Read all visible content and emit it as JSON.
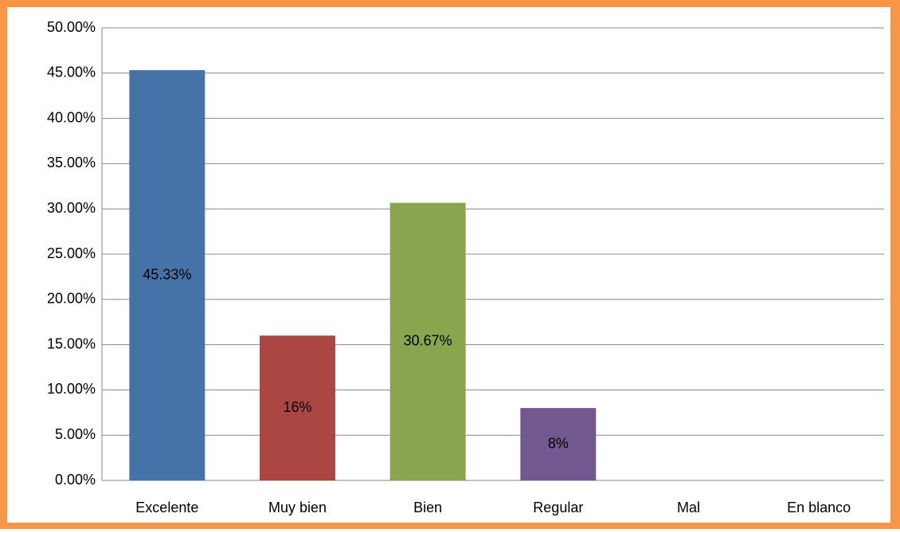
{
  "chart_data": {
    "type": "bar",
    "categories": [
      "Excelente",
      "Muy bien",
      "Bien",
      "Regular",
      "Mal",
      "En blanco"
    ],
    "values": [
      45.33,
      16,
      30.67,
      8,
      0,
      0
    ],
    "value_labels": [
      "45.33%",
      "16%",
      "30.67%",
      "8%",
      null,
      null
    ],
    "colors": [
      "#4572a7",
      "#aa4643",
      "#89a54e",
      "#71588f",
      "#4198af",
      "#db843d"
    ],
    "ylim": [
      0,
      50
    ],
    "yticks": [
      {
        "value": 0,
        "label": "0.00%"
      },
      {
        "value": 5,
        "label": "5.00%"
      },
      {
        "value": 10,
        "label": "10.00%"
      },
      {
        "value": 15,
        "label": "15.00%"
      },
      {
        "value": 20,
        "label": "20.00%"
      },
      {
        "value": 25,
        "label": "25.00%"
      },
      {
        "value": 30,
        "label": "30.00%"
      },
      {
        "value": 35,
        "label": "35.00%"
      },
      {
        "value": 40,
        "label": "40.00%"
      },
      {
        "value": 45,
        "label": "45.00%"
      },
      {
        "value": 50,
        "label": "50.00%"
      }
    ],
    "grid": true
  }
}
